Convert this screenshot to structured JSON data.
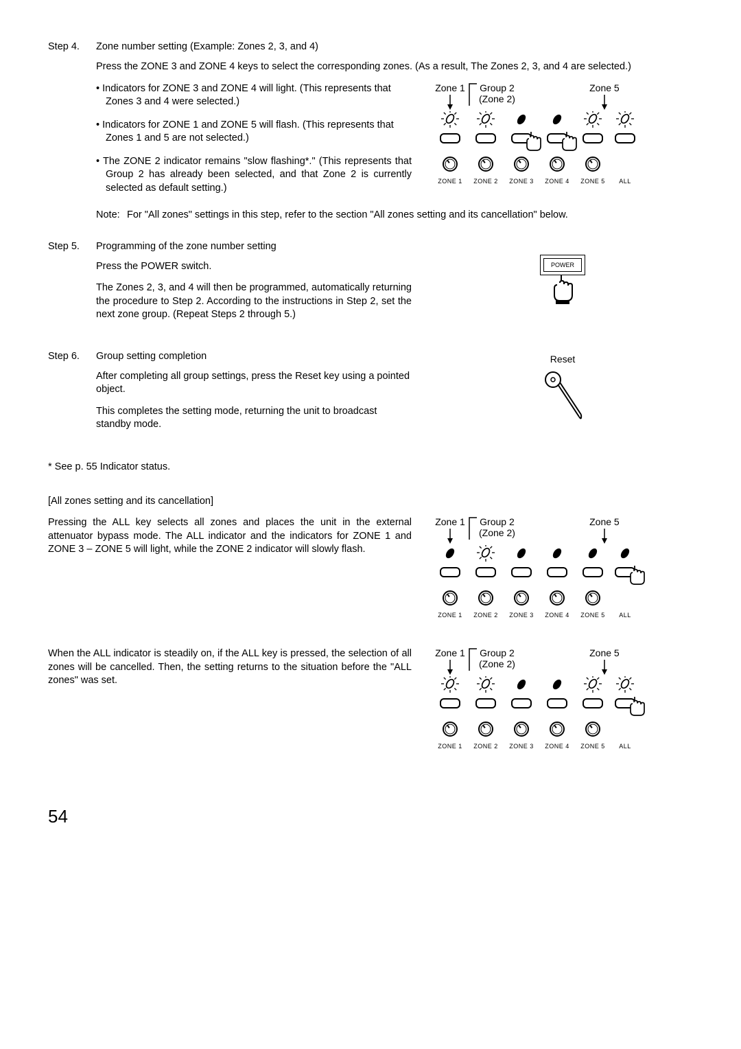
{
  "step4": {
    "num": "Step 4.",
    "title": "Zone number setting (Example: Zones 2, 3, and 4)",
    "intro": "Press the ZONE 3 and ZONE 4 keys to select the corresponding zones. (As a result, The Zones 2, 3, and 4 are selected.)",
    "bullets": [
      "Indicators for ZONE 3 and ZONE 4 will light.\n(This represents that Zones 3 and 4 were selected.)",
      "Indicators for ZONE 1 and ZONE 5 will flash.\n(This represents that Zones 1 and 5 are not selected.)",
      "The ZONE 2 indicator remains \"slow flashing*.\" (This represents that Group 2 has already been selected, and that Zone 2 is currently selected as default setting.)"
    ],
    "note_label": "Note:",
    "note_text": "For \"All zones\" settings in this step, refer to the section \"All zones setting and its cancellation\" below."
  },
  "step5": {
    "num": "Step 5.",
    "title": "Programming of the zone number setting",
    "line1": "Press the POWER switch.",
    "line2": "The Zones 2, 3, and 4 will then be programmed, automatically returning the procedure to Step 2. According to the instructions in Step 2, set the next zone group. (Repeat Steps 2 through 5.)"
  },
  "step6": {
    "num": "Step 6.",
    "title": "Group setting completion",
    "line1": "After completing all group settings, press the Reset key using a pointed object.",
    "line2": "This completes the setting mode, returning the unit to broadcast standby mode."
  },
  "footnote": "* See p. 55 Indicator status.",
  "allzones_heading": "[All zones setting and its cancellation]",
  "allzones_p1": "Pressing the ALL key selects all zones and places the unit in the external attenuator bypass mode. The ALL indicator and the indicators for ZONE 1 and ZONE 3 – ZONE 5 will light, while the ZONE 2 indicator will slowly flash.",
  "allzones_p2": "When the ALL indicator is steadily on, if the ALL key is pressed, the selection of all zones will be cancelled. Then, the setting returns to the situation before the \"ALL zones\" was set.",
  "page_number": "54",
  "panel_labels": {
    "zone1": "Zone 1",
    "group2_a": "Group 2",
    "group2_b": "(Zone 2)",
    "zone5": "Zone 5",
    "zones": [
      "ZONE 1",
      "ZONE 2",
      "ZONE 3",
      "ZONE 4",
      "ZONE 5"
    ],
    "all": "ALL"
  },
  "panels": {
    "p1": {
      "led": [
        "flash",
        "flash",
        "on",
        "on",
        "flash",
        "flash"
      ],
      "press": [
        false,
        false,
        true,
        true,
        false,
        false
      ],
      "show_knobs": true
    },
    "p2": {
      "led": [
        "on",
        "flash",
        "on",
        "on",
        "on",
        "on"
      ],
      "press": [
        false,
        false,
        false,
        false,
        false,
        true
      ],
      "show_knobs": true
    },
    "p3": {
      "led": [
        "flash",
        "flash",
        "on",
        "on",
        "flash",
        "flash"
      ],
      "press": [
        false,
        false,
        false,
        false,
        false,
        true
      ],
      "show_knobs": true
    }
  },
  "power_label": "POWER",
  "reset_label": "Reset"
}
